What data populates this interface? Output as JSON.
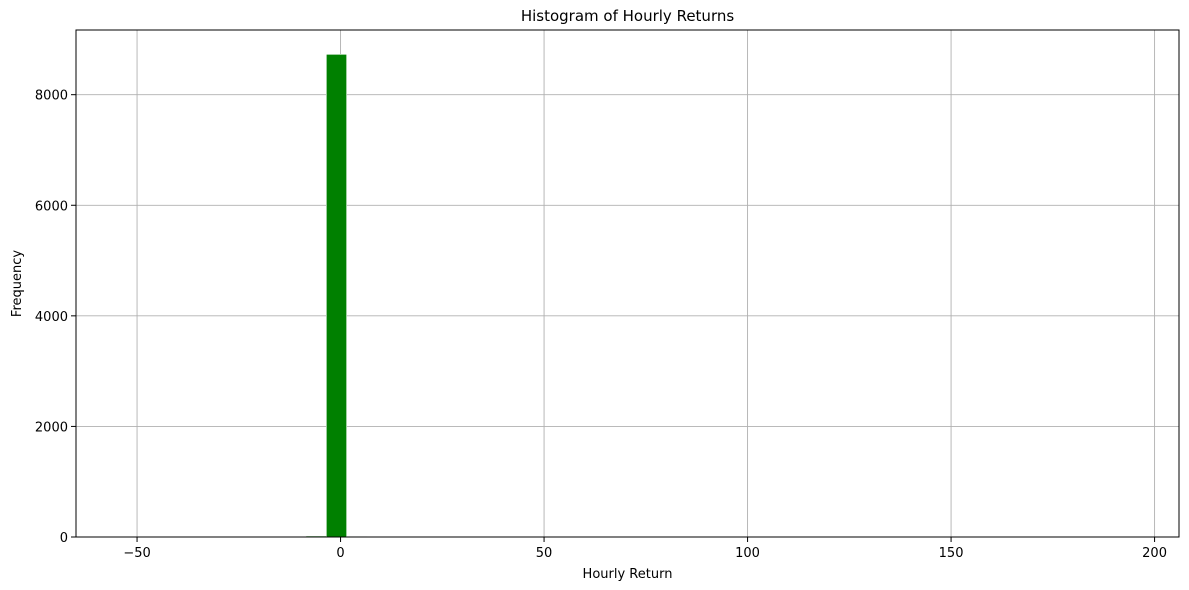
{
  "chart_data": {
    "type": "bar",
    "title": "Histogram of Hourly Returns",
    "xlabel": "Hourly Return",
    "ylabel": "Frequency",
    "xlim": [
      -65,
      206
    ],
    "ylim": [
      0,
      9170
    ],
    "xticks": [
      -50,
      0,
      50,
      100,
      150,
      200
    ],
    "xtick_labels": [
      "−50",
      "0",
      "50",
      "100",
      "150",
      "200"
    ],
    "yticks": [
      0,
      2000,
      4000,
      6000,
      8000
    ],
    "ytick_labels": [
      "0",
      "2000",
      "4000",
      "6000",
      "8000"
    ],
    "grid": true,
    "bar_color": "#008000",
    "bins": [
      {
        "x0": -8.5,
        "x1": -3.5,
        "value": 18
      },
      {
        "x0": -3.5,
        "x1": 1.5,
        "value": 8730
      },
      {
        "x0": 1.5,
        "x1": 6.5,
        "value": 12
      }
    ]
  }
}
